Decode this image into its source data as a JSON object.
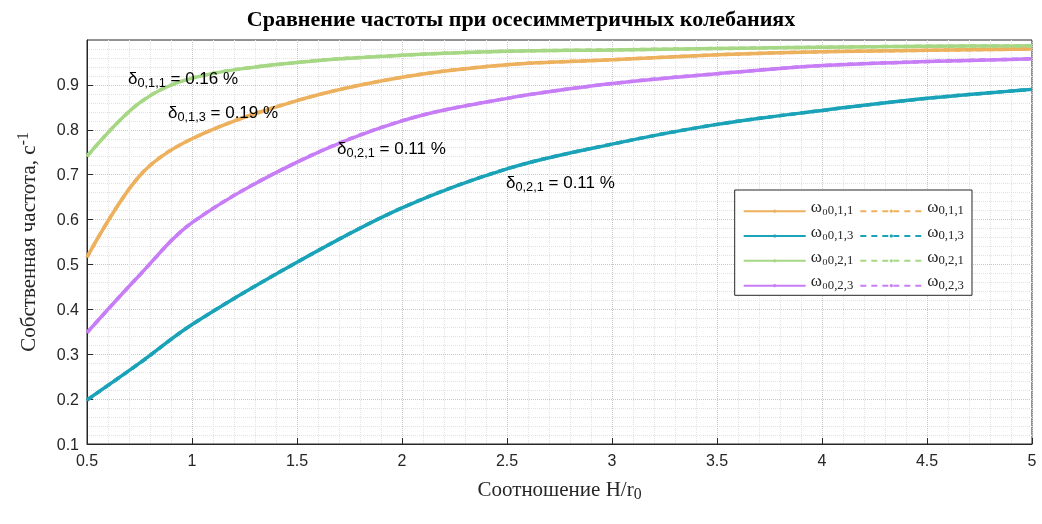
{
  "chart_data": {
    "type": "line",
    "title": "Сравнение частоты при осесимметричных колебаниях",
    "xlabel": "Соотношение H/r$_{0}$",
    "ylabel": "Собственная частота, с$^{-1}$",
    "x": [
      0.5,
      0.75,
      1,
      1.5,
      2,
      2.5,
      3,
      3.5,
      4,
      4.5,
      5
    ],
    "series": [
      {
        "name": "ω₀$_{0,1,1}$",
        "color": "#edb15e",
        "line_style": "solid",
        "values": [
          0.516,
          0.697,
          0.78,
          0.865,
          0.917,
          0.945,
          0.956,
          0.967,
          0.974,
          0.977,
          0.98
        ]
      },
      {
        "name": "ω$_{0,1,1}$",
        "color": "#edb15e",
        "line_style": "dashed",
        "values": [
          0.516,
          0.697,
          0.78,
          0.865,
          0.917,
          0.945,
          0.956,
          0.967,
          0.974,
          0.977,
          0.98
        ]
      },
      {
        "name": "ω₀$_{0,1,3}$",
        "color": "#1aa3b8",
        "line_style": "solid",
        "values": [
          0.198,
          0.28,
          0.366,
          0.505,
          0.626,
          0.713,
          0.768,
          0.812,
          0.843,
          0.87,
          0.89
        ]
      },
      {
        "name": "ω$_{0,1,3}$",
        "color": "#1aa3b8",
        "line_style": "dashed",
        "values": [
          0.198,
          0.28,
          0.366,
          0.505,
          0.626,
          0.713,
          0.768,
          0.812,
          0.843,
          0.87,
          0.89
        ]
      },
      {
        "name": "ω₀$_{0,2,1}$",
        "color": "#a6d785",
        "line_style": "solid",
        "values": [
          0.741,
          0.86,
          0.915,
          0.95,
          0.966,
          0.975,
          0.978,
          0.981,
          0.984,
          0.986,
          0.987
        ]
      },
      {
        "name": "ω$_{0,2,1}$",
        "color": "#a6d785",
        "line_style": "dashed",
        "values": [
          0.741,
          0.86,
          0.915,
          0.95,
          0.966,
          0.975,
          0.978,
          0.981,
          0.984,
          0.986,
          0.987
        ]
      },
      {
        "name": "ω₀$_{0,2,3}$",
        "color": "#c77df5",
        "line_style": "solid",
        "values": [
          0.348,
          0.476,
          0.593,
          0.728,
          0.82,
          0.87,
          0.903,
          0.925,
          0.943,
          0.952,
          0.958
        ]
      },
      {
        "name": "ω$_{0,2,3}$",
        "color": "#c77df5",
        "line_style": "dashed",
        "values": [
          0.348,
          0.476,
          0.593,
          0.728,
          0.82,
          0.87,
          0.903,
          0.925,
          0.943,
          0.952,
          0.958
        ]
      }
    ],
    "xlim": [
      0.5,
      5
    ],
    "xticks": [
      0.5,
      1,
      1.5,
      2,
      2.5,
      3,
      3.5,
      4,
      4.5,
      5
    ],
    "ylim": [
      0.1,
      1
    ],
    "yticks": [
      0.1,
      0.2,
      0.3,
      0.4,
      0.5,
      0.6,
      0.7,
      0.8,
      0.9
    ],
    "annotations": [
      "δ$_{0,1,1}$ = 0.16 %",
      "δ$_{0,1,3}$ = 0.19 %",
      "δ$_{0,2,1}$ = 0.11 %",
      "δ$_{0,2,1}$ = 0.11 %"
    ],
    "grid": true,
    "legend": "right",
    "marker": "none"
  }
}
